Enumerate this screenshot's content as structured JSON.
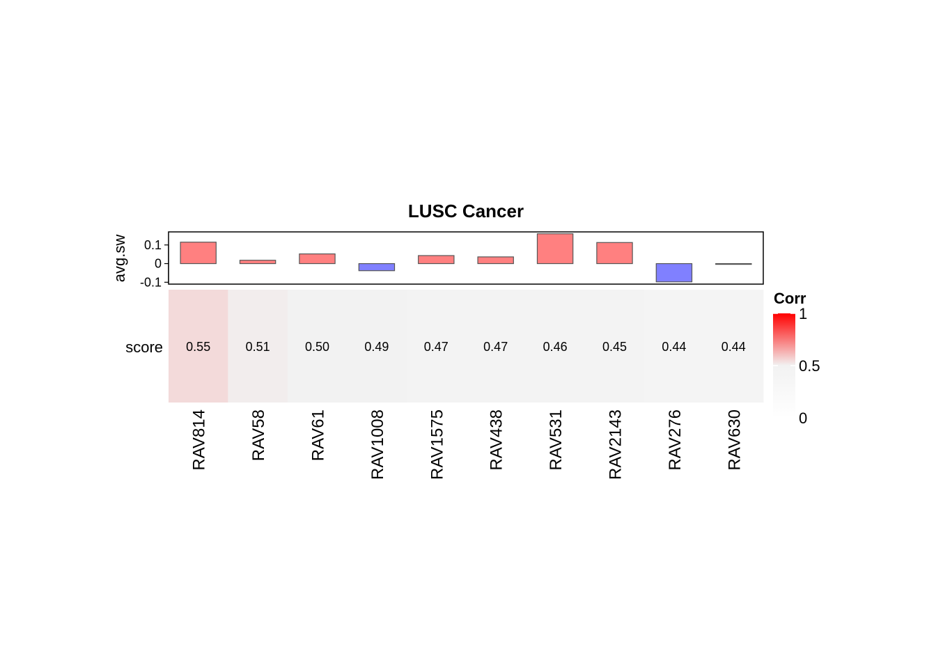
{
  "chart_data": {
    "type": "heatmap",
    "title": "LUSC Cancer",
    "categories": [
      "RAV814",
      "RAV58",
      "RAV61",
      "RAV1008",
      "RAV1575",
      "RAV438",
      "RAV531",
      "RAV2143",
      "RAV276",
      "RAV630"
    ],
    "heatmap": {
      "row_label": "score",
      "values": [
        0.55,
        0.51,
        0.5,
        0.49,
        0.47,
        0.47,
        0.46,
        0.45,
        0.44,
        0.44
      ],
      "value_labels": [
        "0.55",
        "0.51",
        "0.50",
        "0.49",
        "0.47",
        "0.47",
        "0.46",
        "0.45",
        "0.44",
        "0.44"
      ]
    },
    "annotation_bar": {
      "type": "bar",
      "ylabel": "avg.sw",
      "values": [
        0.115,
        0.018,
        0.052,
        -0.038,
        0.043,
        0.036,
        0.16,
        0.113,
        -0.098,
        -0.004
      ],
      "ylim": [
        -0.11,
        0.17
      ],
      "yticks": [
        0.1,
        0,
        -0.1
      ],
      "ytick_labels": [
        "0.1",
        "0",
        "-0.1"
      ],
      "positive_color": "#FF8080",
      "negative_color": "#8080FF",
      "border_color": "#555555"
    },
    "legend": {
      "title": "Corr",
      "ticks": [
        1,
        0.5,
        0
      ],
      "tick_labels": [
        "1",
        "0.5",
        "0"
      ],
      "colors": {
        "low": "#FFFFFF",
        "mid": "#F2F2F2",
        "high": "#FF0000"
      },
      "placement": "right"
    }
  }
}
